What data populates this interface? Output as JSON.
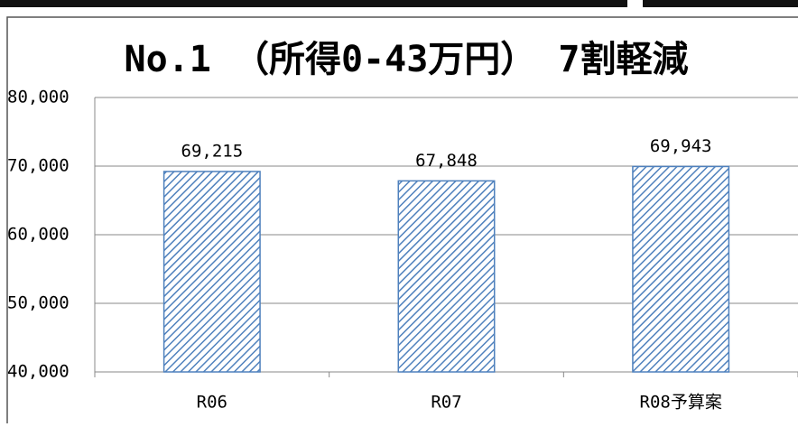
{
  "chart_data": {
    "type": "bar",
    "title": "No.1 （所得0-43万円） 7割軽減",
    "categories": [
      "R06",
      "R07",
      "R08予算案"
    ],
    "values": [
      69215,
      67848,
      69943
    ],
    "value_labels": [
      "69,215",
      "67,848",
      "69,943"
    ],
    "color": "#4f81bd",
    "ylim": [
      40000,
      80000
    ],
    "yticks": [
      {
        "value": 40000,
        "label": "40,000"
      },
      {
        "value": 50000,
        "label": "50,000"
      },
      {
        "value": 60000,
        "label": "60,000"
      },
      {
        "value": 70000,
        "label": "70,000"
      },
      {
        "value": 80000,
        "label": "80,000"
      }
    ],
    "grid": true
  }
}
